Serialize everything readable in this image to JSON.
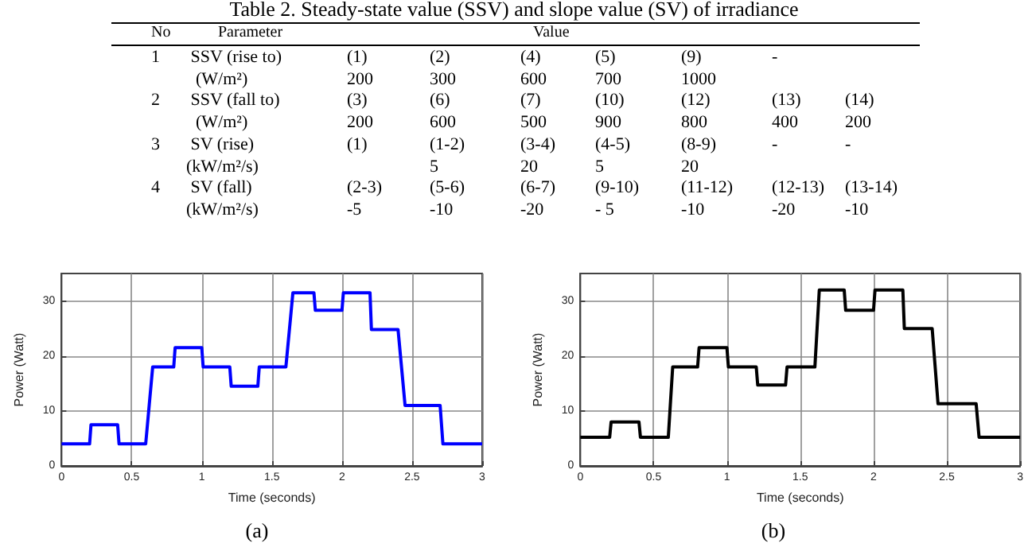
{
  "chart_data": [
    {
      "type": "other",
      "title": "Table 2. Steady-state value (SSV) and slope value (SV) of irradiance",
      "annotations": [
        "No\tParameter\tValue",
        "1\tSSV (rise to)\t(1)\t(2)\t(4)\t(5)\t(9)\t-",
        "\t(W/m²)\t200\t300\t600\t700\t1000",
        "2\tSSV (fall to)\t(3)\t(6)\t(7)\t(10)\t(12)\t(13)\t(14)",
        "\t(W/m²)\t200\t600\t500\t900\t800\t400\t200",
        "3\tSV (rise)\t(1)\t(1-2)\t(3-4)\t(4-5)\t(8-9)\t-\t-",
        "\t(kW/m²/s)\t\t5\t20\t5\t20",
        "4\tSV (fall)\t(2-3)\t(5-6)\t(6-7)\t(9-10)\t(11-12)\t(12-13)\t(13-14)",
        "\t(kW/m²/s)\t-5\t-10\t-20\t- 5\t-10\t-20\t-10"
      ]
    },
    {
      "type": "line",
      "xlabel": "Time (seconds)",
      "ylabel": "Power (Watt)",
      "annotations": [
        "(a)"
      ],
      "xlim": [
        0,
        3
      ],
      "xticks": [
        0,
        0.5,
        1,
        1.5,
        2,
        2.5,
        3
      ],
      "ylim": [
        0,
        35
      ],
      "yticks": [
        0,
        10,
        20,
        30
      ],
      "grid": true,
      "marker": "none",
      "line_style": "solid",
      "series": [
        {
          "color": "#0000ff",
          "x": [
            0,
            0.2,
            0.21,
            0.4,
            0.41,
            0.6,
            0.65,
            0.8,
            0.81,
            1.0,
            1.01,
            1.2,
            1.21,
            1.4,
            1.41,
            1.6,
            1.65,
            1.8,
            1.81,
            2.0,
            2.01,
            2.2,
            2.21,
            2.4,
            2.45,
            2.7,
            2.72,
            3
          ],
          "values": [
            4,
            4,
            7.5,
            7.5,
            4,
            4,
            18,
            18,
            21.5,
            21.5,
            18,
            18,
            14.5,
            14.5,
            18,
            18,
            31.5,
            31.5,
            28.3,
            28.3,
            31.5,
            31.5,
            24.8,
            24.8,
            11,
            11,
            4,
            4
          ]
        }
      ]
    },
    {
      "type": "line",
      "xlabel": "Time (seconds)",
      "ylabel": "Power (Watt)",
      "annotations": [
        "(b)"
      ],
      "xlim": [
        0,
        3
      ],
      "xticks": [
        0,
        0.5,
        1,
        1.5,
        2,
        2.5,
        3
      ],
      "ylim": [
        0,
        35
      ],
      "yticks": [
        0,
        10,
        20,
        30
      ],
      "grid": true,
      "marker": "none",
      "line_style": "solid",
      "series": [
        {
          "color": "#000000",
          "x": [
            0,
            0.2,
            0.21,
            0.4,
            0.41,
            0.6,
            0.63,
            0.8,
            0.81,
            1.0,
            1.01,
            1.2,
            1.21,
            1.4,
            1.41,
            1.6,
            1.63,
            1.8,
            1.81,
            2.0,
            2.01,
            2.2,
            2.21,
            2.4,
            2.44,
            2.7,
            2.72,
            3
          ],
          "values": [
            5.2,
            5.2,
            8,
            8,
            5.2,
            5.2,
            18,
            18,
            21.5,
            21.5,
            18,
            18,
            14.7,
            14.7,
            18,
            18,
            32,
            32,
            28.3,
            28.3,
            32,
            32,
            25,
            25,
            11.3,
            11.3,
            5.2,
            5.2
          ]
        }
      ]
    }
  ]
}
